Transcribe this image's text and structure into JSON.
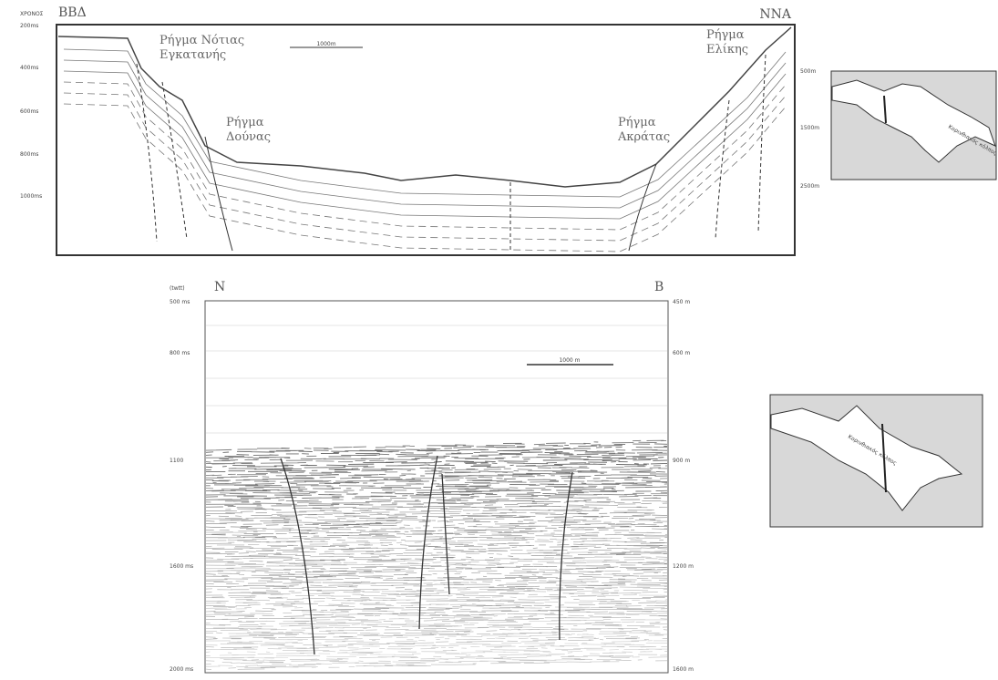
{
  "top_profile": {
    "left_direction": "ΒΒΔ",
    "right_direction": "ΝΝΑ",
    "scale": "1000m",
    "axis_title": "ΧΡΟΝΟΣ",
    "left_ticks": [
      "200ms",
      "400ms",
      "600ms",
      "800ms",
      "1000ms"
    ],
    "right_ticks": [
      "500m",
      "1500m",
      "2500m"
    ],
    "faults": [
      {
        "line1": "Ρήγμα Νότιας",
        "line2": "Εγκατανής"
      },
      {
        "line1": "Ρήγμα",
        "line2": "Δούνας"
      },
      {
        "line1": "Ρήγμα",
        "line2": "Ακράτας"
      },
      {
        "line1": "Ρήγμα",
        "line2": "Ελίκης"
      }
    ]
  },
  "bottom_profile": {
    "axis_title": "(twtt)",
    "left_direction": "Ν",
    "right_direction": "Β",
    "scale": "1000 m",
    "left_ticks": [
      "500 ms",
      "800 ms",
      "1100",
      "1600 ms",
      "2000 ms"
    ],
    "right_ticks": [
      "450 m",
      "600 m",
      "900 m",
      "1200 m",
      "1600 m"
    ]
  },
  "maps": [
    {
      "label": "Κορινθιακός κόλπος"
    },
    {
      "label": "Κορινθιακός κόλπος"
    }
  ]
}
